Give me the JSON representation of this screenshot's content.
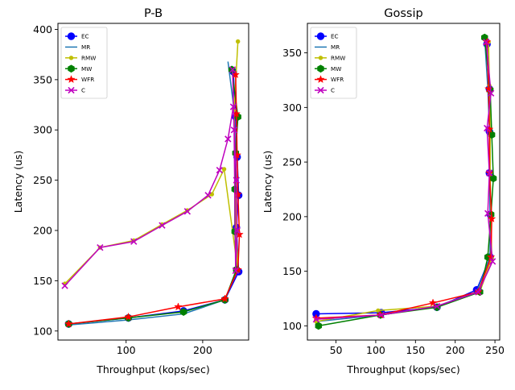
{
  "chart_data": [
    {
      "type": "line",
      "title": "P-B",
      "xlabel": "Throughput (kops/sec)",
      "ylabel": "Latency (us)",
      "xlim": [
        11,
        260
      ],
      "ylim": [
        91,
        406
      ],
      "xticks": [
        100,
        200
      ],
      "yticks": [
        100,
        150,
        200,
        250,
        300,
        350,
        400
      ],
      "legend": "top-left",
      "series": [
        {
          "name": "EC",
          "color": "#0000ff",
          "marker": "circle",
          "x": [
            25,
            103,
            175,
            229,
            247,
            244,
            247,
            245,
            243,
            240
          ],
          "y": [
            107,
            113,
            120,
            131,
            159,
            203,
            235,
            273,
            313,
            358
          ]
        },
        {
          "name": "MR",
          "color": "#1f77b4",
          "marker": "none",
          "x": [
            25,
            103,
            175,
            229,
            245,
            243,
            244,
            243,
            241,
            233
          ],
          "y": [
            106,
            111,
            117,
            131,
            160,
            200,
            240,
            280,
            320,
            368
          ]
        },
        {
          "name": "RMW",
          "color": "#bfbf00",
          "marker": "point",
          "x": [
            20,
            66,
            110,
            147,
            180,
            212,
            228,
            246,
            244,
            243,
            241,
            246
          ],
          "y": [
            147,
            183,
            190,
            206,
            220,
            236,
            261,
            160,
            200,
            240,
            320,
            388
          ]
        },
        {
          "name": "MW",
          "color": "#008000",
          "marker": "hexagon",
          "x": [
            25,
            103,
            175,
            229,
            244,
            242,
            242,
            243,
            246,
            238
          ],
          "y": [
            107,
            113,
            119,
            131,
            161,
            199,
            241,
            277,
            313,
            360
          ]
        },
        {
          "name": "WFR",
          "color": "#ff0000",
          "marker": "star",
          "x": [
            25,
            103,
            168,
            229,
            246,
            248,
            246,
            245,
            244,
            243
          ],
          "y": [
            107,
            114,
            124,
            132,
            161,
            196,
            236,
            275,
            316,
            355
          ]
        },
        {
          "name": "C",
          "color": "#bf00bf",
          "marker": "x",
          "x": [
            20,
            66,
            110,
            147,
            180,
            207,
            222,
            233,
            240,
            244,
            245,
            243,
            241,
            239
          ],
          "y": [
            145,
            183,
            189,
            205,
            219,
            235,
            260,
            291,
            323,
            250,
            200,
            160,
            300,
            360
          ]
        }
      ]
    },
    {
      "type": "line",
      "title": "Gossip",
      "xlabel": "Throughput (kops/sec)",
      "ylabel": "Latency (us)",
      "xlim": [
        14,
        256
      ],
      "ylim": [
        87,
        377
      ],
      "xticks": [
        50,
        100,
        150,
        200,
        250
      ],
      "yticks": [
        100,
        150,
        200,
        250,
        300,
        350
      ],
      "legend": "top-left",
      "series": [
        {
          "name": "EC",
          "color": "#0000ff",
          "marker": "circle",
          "x": [
            25,
            107,
            177,
            227,
            244,
            244,
            243,
            243,
            243,
            240
          ],
          "y": [
            111,
            112,
            117,
            133,
            163,
            202,
            240,
            278,
            317,
            358
          ]
        },
        {
          "name": "MR",
          "color": "#1f77b4",
          "marker": "none",
          "x": [
            25,
            107,
            177,
            227,
            244,
            244,
            243,
            243,
            241,
            237
          ],
          "y": [
            104,
            110,
            118,
            131,
            163,
            200,
            240,
            280,
            318,
            364
          ]
        },
        {
          "name": "RMW",
          "color": "#bfbf00",
          "marker": "point",
          "x": [
            25,
            103,
            177,
            231,
            246,
            245,
            244,
            244,
            243,
            242
          ],
          "y": [
            104,
            114,
            118,
            131,
            162,
            200,
            240,
            280,
            320,
            360
          ]
        },
        {
          "name": "MW",
          "color": "#008000",
          "marker": "hexagon",
          "x": [
            28,
            106,
            177,
            231,
            241,
            245,
            248,
            246,
            244,
            237
          ],
          "y": [
            100,
            110,
            117,
            131,
            163,
            202,
            235,
            275,
            316,
            364
          ]
        },
        {
          "name": "WFR",
          "color": "#ff0000",
          "marker": "star",
          "x": [
            25,
            106,
            172,
            229,
            245,
            246,
            243,
            243,
            242,
            240
          ],
          "y": [
            107,
            110,
            121,
            131,
            163,
            198,
            240,
            280,
            317,
            360
          ]
        },
        {
          "name": "C",
          "color": "#bf00bf",
          "marker": "x",
          "x": [
            25,
            107,
            177,
            229,
            247,
            241,
            243,
            240,
            245,
            239
          ],
          "y": [
            106,
            110,
            118,
            131,
            159,
            203,
            240,
            281,
            313,
            360
          ]
        }
      ]
    }
  ]
}
